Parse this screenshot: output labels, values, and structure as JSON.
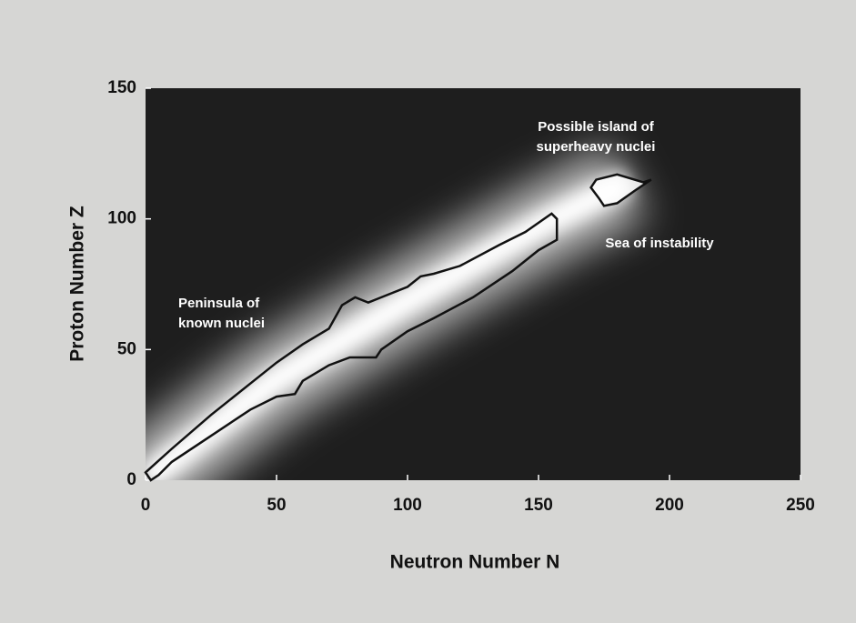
{
  "chart_data": {
    "type": "contour",
    "xlabel": "Neutron Number N",
    "ylabel": "Proton Number Z",
    "xlim": [
      0,
      250
    ],
    "ylim": [
      0,
      150
    ],
    "xticks": [
      0,
      50,
      100,
      150,
      200,
      250
    ],
    "yticks": [
      0,
      50,
      100,
      150
    ],
    "background": "#1e1e1e",
    "color": "#111111",
    "annotations": [
      [
        "Possible island of",
        "superheavy nuclei"
      ],
      [
        "Sea of instability"
      ],
      [
        "Peninsula of",
        "known nuclei"
      ]
    ],
    "series": [
      {
        "x": [
          0,
          10,
          25,
          40,
          50,
          60,
          70,
          75,
          80,
          85,
          90,
          100,
          105,
          110,
          120,
          135,
          145,
          155,
          157,
          157,
          150,
          140,
          125,
          110,
          100,
          90,
          88,
          78,
          70,
          60,
          57,
          50,
          40,
          25,
          10,
          5,
          2,
          0
        ],
        "y": [
          3,
          12,
          25,
          37,
          45,
          52,
          58,
          67,
          70,
          68,
          70,
          74,
          78,
          79,
          82,
          90,
          95,
          102,
          100,
          92,
          88,
          80,
          70,
          62,
          57,
          50,
          47,
          47,
          44,
          38,
          33,
          32,
          27,
          17,
          7,
          2,
          0,
          3
        ]
      },
      {
        "x": [
          170,
          172,
          180,
          190,
          193,
          187,
          180,
          175,
          173,
          170
        ],
        "y": [
          112,
          115,
          117,
          114,
          115,
          111,
          106,
          105,
          108,
          112
        ]
      }
    ]
  }
}
